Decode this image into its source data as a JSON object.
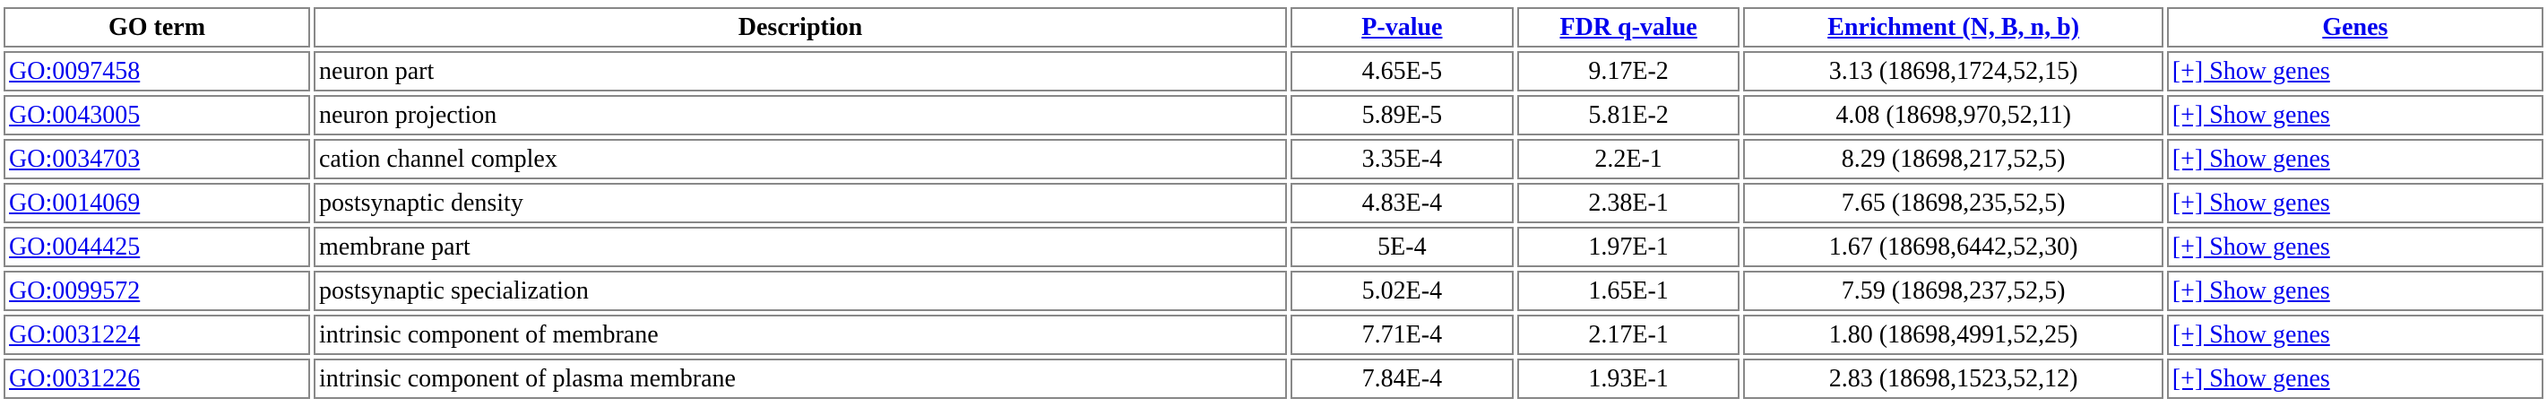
{
  "table": {
    "headers": {
      "go_term": "GO term",
      "description": "Description",
      "p_value": "P-value",
      "fdr": "FDR q-value",
      "enrichment": "Enrichment (N, B, n, b)",
      "genes": "Genes"
    },
    "rows": [
      {
        "go_term": "GO:0097458",
        "description": "neuron part",
        "p_value": "4.65E-5",
        "fdr": "9.17E-2",
        "enrichment": "3.13 (18698,1724,52,15)",
        "genes": "[+] Show genes"
      },
      {
        "go_term": "GO:0043005",
        "description": "neuron projection",
        "p_value": "5.89E-5",
        "fdr": "5.81E-2",
        "enrichment": "4.08 (18698,970,52,11)",
        "genes": "[+] Show genes"
      },
      {
        "go_term": "GO:0034703",
        "description": "cation channel complex",
        "p_value": "3.35E-4",
        "fdr": "2.2E-1",
        "enrichment": "8.29 (18698,217,52,5)",
        "genes": "[+] Show genes"
      },
      {
        "go_term": "GO:0014069",
        "description": "postsynaptic density",
        "p_value": "4.83E-4",
        "fdr": "2.38E-1",
        "enrichment": "7.65 (18698,235,52,5)",
        "genes": "[+] Show genes"
      },
      {
        "go_term": "GO:0044425",
        "description": "membrane part",
        "p_value": "5E-4",
        "fdr": "1.97E-1",
        "enrichment": "1.67 (18698,6442,52,30)",
        "genes": "[+] Show genes"
      },
      {
        "go_term": "GO:0099572",
        "description": "postsynaptic specialization",
        "p_value": "5.02E-4",
        "fdr": "1.65E-1",
        "enrichment": "7.59 (18698,237,52,5)",
        "genes": "[+] Show genes"
      },
      {
        "go_term": "GO:0031224",
        "description": "intrinsic component of membrane",
        "p_value": "7.71E-4",
        "fdr": "2.17E-1",
        "enrichment": "1.80 (18698,4991,52,25)",
        "genes": "[+] Show genes"
      },
      {
        "go_term": "GO:0031226",
        "description": "intrinsic component of plasma membrane",
        "p_value": "7.84E-4",
        "fdr": "1.93E-1",
        "enrichment": "2.83 (18698,1523,52,12)",
        "genes": "[+] Show genes"
      }
    ]
  },
  "colors": {
    "link": "#0000ee",
    "border": "#888888"
  }
}
